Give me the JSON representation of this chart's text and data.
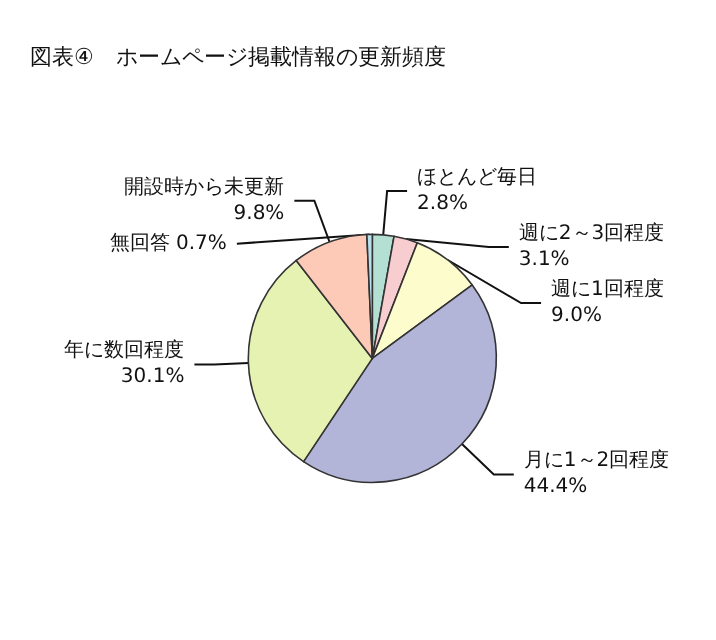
{
  "chart_data": {
    "type": "pie",
    "title": "図表④　ホームページ掲載情報の更新頻度",
    "categories": [
      "ほとんど毎日",
      "週に2～3回程度",
      "週に1回程度",
      "月に1～2回程度",
      "年に数回程度",
      "開設時から未更新",
      "無回答"
    ],
    "values": [
      2.8,
      3.1,
      9.0,
      44.4,
      30.1,
      9.8,
      0.7
    ],
    "value_labels": [
      "2.8%",
      "3.1%",
      "9.0%",
      "44.4%",
      "30.1%",
      "9.8%",
      "0.7%"
    ],
    "colors": [
      "#b4e0d4",
      "#f8cdd0",
      "#fdfccd",
      "#b3b5d8",
      "#e5f2b2",
      "#fccab6",
      "#b8e0ec"
    ],
    "legend": false
  }
}
